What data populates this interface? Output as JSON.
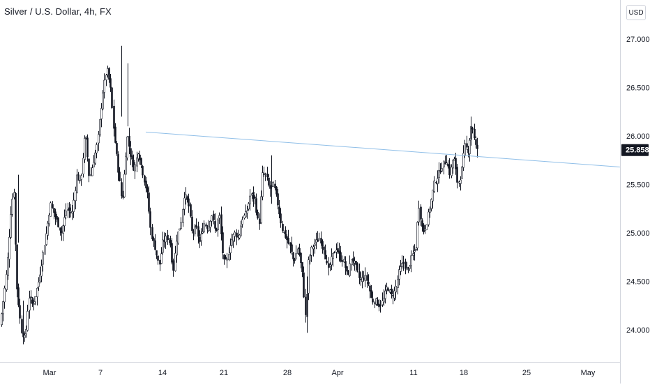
{
  "header": {
    "title": "Silver / U.S. Dollar, 4h, FX",
    "currency": "USD"
  },
  "chart_data": {
    "type": "candlestick",
    "title": "Silver / U.S. Dollar, 4h, FX",
    "y_ticks": [
      "27.000",
      "26.500",
      "26.000",
      "25.500",
      "25.000",
      "24.500",
      "24.000"
    ],
    "y_tick_values": [
      27.0,
      26.5,
      26.0,
      25.5,
      25.0,
      24.5,
      24.0
    ],
    "x_ticks": [
      "Mar",
      "7",
      "14",
      "21",
      "28",
      "Apr",
      "11",
      "18",
      "25",
      "May"
    ],
    "last_price": "25.858",
    "last_price_value": 25.858,
    "ylim": [
      23.65,
      27.3
    ],
    "trendline": {
      "color": "#90bfe8"
    },
    "candle_color": "#131722",
    "anchors": [
      [
        0,
        24.05
      ],
      [
        6,
        24.4
      ],
      [
        10,
        24.65
      ],
      [
        16,
        25.3
      ],
      [
        20,
        25.45
      ],
      [
        23,
        24.5
      ],
      [
        30,
        24.0
      ],
      [
        36,
        23.9
      ],
      [
        41,
        24.35
      ],
      [
        47,
        24.25
      ],
      [
        55,
        24.5
      ],
      [
        65,
        24.95
      ],
      [
        72,
        25.3
      ],
      [
        80,
        25.15
      ],
      [
        88,
        25.0
      ],
      [
        95,
        25.25
      ],
      [
        103,
        25.2
      ],
      [
        110,
        25.6
      ],
      [
        115,
        25.5
      ],
      [
        122,
        26.05
      ],
      [
        128,
        25.55
      ],
      [
        134,
        25.75
      ],
      [
        140,
        25.95
      ],
      [
        147,
        26.45
      ],
      [
        153,
        26.7
      ],
      [
        158,
        26.5
      ],
      [
        163,
        26.05
      ],
      [
        170,
        25.6
      ],
      [
        175,
        25.3
      ],
      [
        182,
        26.0
      ],
      [
        187,
        25.8
      ],
      [
        192,
        25.65
      ],
      [
        198,
        25.85
      ],
      [
        205,
        25.6
      ],
      [
        211,
        25.4
      ],
      [
        216,
        25.0
      ],
      [
        222,
        24.85
      ],
      [
        228,
        24.65
      ],
      [
        233,
        24.9
      ],
      [
        238,
        24.95
      ],
      [
        243,
        24.95
      ],
      [
        248,
        24.6
      ],
      [
        253,
        24.95
      ],
      [
        259,
        25.1
      ],
      [
        264,
        25.4
      ],
      [
        270,
        25.3
      ],
      [
        275,
        25.0
      ],
      [
        281,
        25.05
      ],
      [
        286,
        24.9
      ],
      [
        292,
        25.1
      ],
      [
        298,
        25.05
      ],
      [
        303,
        25.2
      ],
      [
        309,
        25.0
      ],
      [
        314,
        25.2
      ],
      [
        320,
        24.7
      ],
      [
        325,
        24.7
      ],
      [
        330,
        24.9
      ],
      [
        336,
        25.0
      ],
      [
        342,
        24.95
      ],
      [
        347,
        25.15
      ],
      [
        353,
        25.2
      ],
      [
        359,
        25.4
      ],
      [
        365,
        25.35
      ],
      [
        371,
        25.05
      ],
      [
        376,
        25.6
      ],
      [
        381,
        25.6
      ],
      [
        386,
        25.45
      ],
      [
        392,
        25.5
      ],
      [
        398,
        25.3
      ],
      [
        404,
        25.05
      ],
      [
        410,
        24.95
      ],
      [
        416,
        24.85
      ],
      [
        421,
        24.7
      ],
      [
        427,
        24.85
      ],
      [
        433,
        24.6
      ],
      [
        438,
        24.1
      ],
      [
        442,
        24.7
      ],
      [
        447,
        24.85
      ],
      [
        452,
        24.9
      ],
      [
        458,
        24.95
      ],
      [
        464,
        24.85
      ],
      [
        470,
        24.6
      ],
      [
        476,
        24.75
      ],
      [
        482,
        24.85
      ],
      [
        487,
        24.75
      ],
      [
        493,
        24.7
      ],
      [
        498,
        24.55
      ],
      [
        504,
        24.75
      ],
      [
        510,
        24.65
      ],
      [
        516,
        24.5
      ],
      [
        522,
        24.55
      ],
      [
        527,
        24.5
      ],
      [
        533,
        24.3
      ],
      [
        538,
        24.3
      ],
      [
        544,
        24.25
      ],
      [
        549,
        24.3
      ],
      [
        555,
        24.45
      ],
      [
        561,
        24.35
      ],
      [
        566,
        24.4
      ],
      [
        572,
        24.6
      ],
      [
        578,
        24.7
      ],
      [
        584,
        24.6
      ],
      [
        590,
        24.75
      ],
      [
        596,
        24.85
      ],
      [
        600,
        25.3
      ],
      [
        606,
        25.0
      ],
      [
        611,
        25.1
      ],
      [
        617,
        25.3
      ],
      [
        622,
        25.5
      ],
      [
        628,
        25.6
      ],
      [
        634,
        25.7
      ],
      [
        640,
        25.75
      ],
      [
        645,
        25.6
      ],
      [
        650,
        25.8
      ],
      [
        656,
        25.5
      ],
      [
        661,
        25.6
      ],
      [
        666,
        25.9
      ],
      [
        671,
        25.85
      ],
      [
        676,
        26.15
      ],
      [
        681,
        25.9
      ],
      [
        686,
        25.85
      ]
    ]
  }
}
